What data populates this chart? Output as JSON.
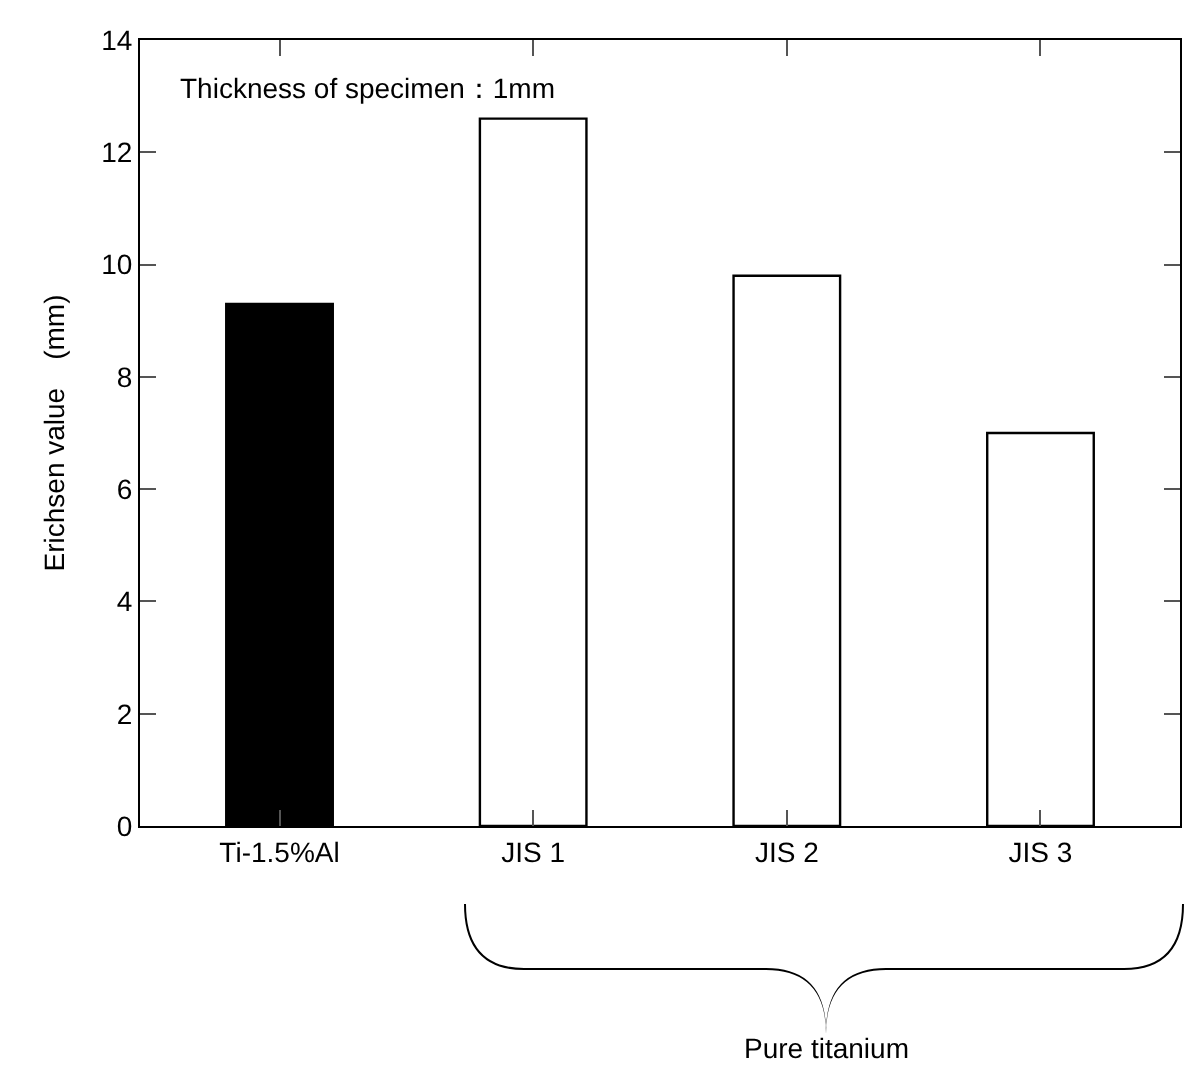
{
  "chart_data": {
    "type": "bar",
    "ylabel": "Erichsen value　(mm)",
    "categories": [
      "Ti-1.5%Al",
      "JIS 1",
      "JIS 2",
      "JIS 3"
    ],
    "values": [
      9.3,
      12.6,
      9.8,
      7.0
    ],
    "colors": [
      "#000000",
      "#ffffff",
      "#ffffff",
      "#ffffff"
    ],
    "ylim": [
      0,
      14
    ],
    "yticks": [
      0,
      2,
      4,
      6,
      8,
      10,
      12,
      14
    ],
    "annotations": [
      "Thickness of specimen：1mm",
      "Pure titanium"
    ]
  }
}
